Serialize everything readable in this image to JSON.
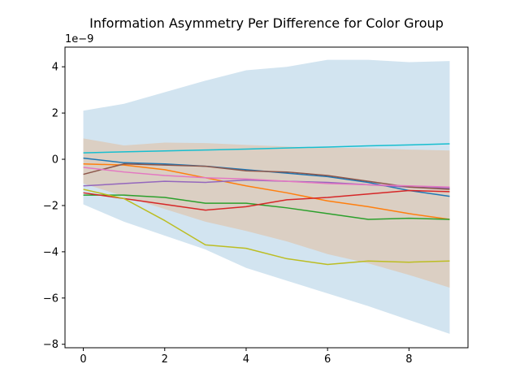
{
  "chart_data": {
    "type": "line",
    "title": "Information Asymmetry Per Difference for Color Group",
    "xlabel": "",
    "ylabel": "",
    "y_multiplier_label": "1e−9",
    "xlim": [
      -0.45,
      9.45
    ],
    "ylim": [
      -8.15,
      4.85
    ],
    "x_ticks": [
      0,
      2,
      4,
      6,
      8
    ],
    "x_tick_labels": [
      "0",
      "2",
      "4",
      "6",
      "8"
    ],
    "y_ticks": [
      -8,
      -6,
      -4,
      -2,
      0,
      2,
      4
    ],
    "y_tick_labels": [
      "−8",
      "−6",
      "−4",
      "−2",
      "0",
      "2",
      "4"
    ],
    "grid": false,
    "legend": "none",
    "x": [
      0,
      1,
      2,
      3,
      4,
      5,
      6,
      7,
      8,
      9
    ],
    "bands": [
      {
        "color": "#1f77b4",
        "opacity": 0.2,
        "upper": [
          2.1,
          2.4,
          2.9,
          3.4,
          3.85,
          4.0,
          4.3,
          4.3,
          4.2,
          4.25
        ],
        "lower": [
          -1.95,
          -2.7,
          -3.3,
          -3.9,
          -4.7,
          -5.25,
          -5.8,
          -6.35,
          -6.95,
          -7.55
        ]
      },
      {
        "color": "#ff7f0e",
        "opacity": 0.2,
        "upper": [
          0.9,
          0.6,
          0.72,
          0.7,
          0.62,
          0.55,
          0.5,
          0.48,
          0.42,
          0.38
        ],
        "lower": [
          -1.05,
          -1.6,
          -2.15,
          -2.7,
          -3.1,
          -3.55,
          -4.1,
          -4.5,
          -5.0,
          -5.55
        ]
      }
    ],
    "series": [
      {
        "color": "#1f77b4",
        "values": [
          0.05,
          -0.15,
          -0.2,
          -0.3,
          -0.45,
          -0.6,
          -0.75,
          -1.0,
          -1.35,
          -1.6
        ]
      },
      {
        "color": "#ff7f0e",
        "values": [
          -0.2,
          -0.25,
          -0.45,
          -0.8,
          -1.15,
          -1.45,
          -1.8,
          -2.05,
          -2.35,
          -2.6
        ]
      },
      {
        "color": "#2ca02c",
        "values": [
          -1.55,
          -1.55,
          -1.65,
          -1.9,
          -1.9,
          -2.1,
          -2.35,
          -2.6,
          -2.55,
          -2.6
        ]
      },
      {
        "color": "#d62728",
        "values": [
          -1.45,
          -1.7,
          -1.95,
          -2.2,
          -2.05,
          -1.75,
          -1.65,
          -1.5,
          -1.35,
          -1.4
        ]
      },
      {
        "color": "#9467bd",
        "values": [
          -1.15,
          -1.05,
          -0.95,
          -1.0,
          -0.9,
          -0.95,
          -1.0,
          -1.1,
          -1.2,
          -1.25
        ]
      },
      {
        "color": "#8c564b",
        "values": [
          -0.65,
          -0.2,
          -0.25,
          -0.3,
          -0.5,
          -0.55,
          -0.7,
          -0.95,
          -1.2,
          -1.3
        ]
      },
      {
        "color": "#e377c2",
        "values": [
          -0.35,
          -0.55,
          -0.7,
          -0.8,
          -0.85,
          -0.95,
          -1.05,
          -1.1,
          -1.15,
          -1.2
        ]
      },
      {
        "color": "#bcbd22",
        "values": [
          -1.3,
          -1.7,
          -2.65,
          -3.7,
          -3.85,
          -4.3,
          -4.55,
          -4.4,
          -4.45,
          -4.4
        ]
      },
      {
        "color": "#17becf",
        "values": [
          0.28,
          0.32,
          0.36,
          0.4,
          0.44,
          0.49,
          0.53,
          0.58,
          0.62,
          0.67
        ]
      }
    ]
  }
}
